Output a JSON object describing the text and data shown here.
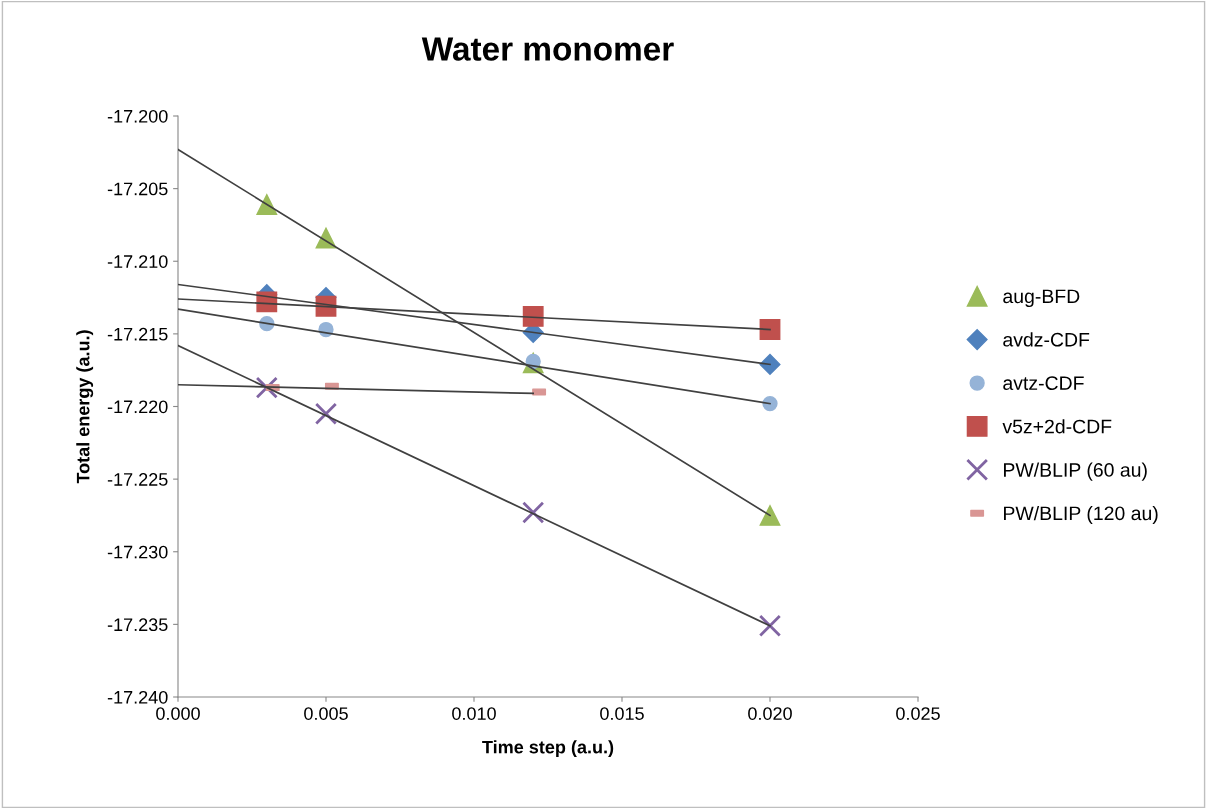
{
  "chart_data": {
    "type": "scatter",
    "title": "Water monomer",
    "xlabel": "Time step (a.u.)",
    "ylabel": "Total energy (a.u.)",
    "xlim": [
      0,
      0.025
    ],
    "xticks": [
      {
        "value": 0,
        "label": "0.000"
      },
      {
        "value": 0.005,
        "label": "0.005"
      },
      {
        "value": 0.01,
        "label": "0.010"
      },
      {
        "value": 0.015,
        "label": "0.015"
      },
      {
        "value": 0.02,
        "label": "0.020"
      },
      {
        "value": 0.025,
        "label": "0.025"
      }
    ],
    "ylim": [
      -17.24,
      -17.2
    ],
    "yticks": [
      {
        "value": -17.24,
        "label": "-17.240"
      },
      {
        "value": -17.235,
        "label": "-17.235"
      },
      {
        "value": -17.23,
        "label": "-17.230"
      },
      {
        "value": -17.225,
        "label": "-17.225"
      },
      {
        "value": -17.22,
        "label": "-17.220"
      },
      {
        "value": -17.215,
        "label": "-17.215"
      },
      {
        "value": -17.21,
        "label": "-17.210"
      },
      {
        "value": -17.205,
        "label": "-17.205"
      },
      {
        "value": -17.2,
        "label": "-17.200"
      }
    ],
    "grid": false,
    "legend": "right",
    "series": [
      {
        "type": "line",
        "color": "#404040",
        "marker": "none",
        "x": [
          0,
          0.02
        ],
        "values": [
          -17.2023,
          -17.2275
        ]
      },
      {
        "type": "line",
        "color": "#404040",
        "marker": "none",
        "x": [
          0,
          0.02
        ],
        "values": [
          -17.2116,
          -17.2171
        ]
      },
      {
        "type": "line",
        "color": "#404040",
        "marker": "none",
        "x": [
          0,
          0.02
        ],
        "values": [
          -17.2133,
          -17.2198
        ]
      },
      {
        "type": "line",
        "color": "#404040",
        "marker": "none",
        "x": [
          0,
          0.02
        ],
        "values": [
          -17.2126,
          -17.2147
        ]
      },
      {
        "type": "line",
        "color": "#404040",
        "marker": "none",
        "x": [
          0,
          0.02
        ],
        "values": [
          -17.2158,
          -17.2351
        ]
      },
      {
        "type": "line",
        "color": "#404040",
        "marker": "none",
        "x": [
          0,
          0.012
        ],
        "values": [
          -17.2185,
          -17.2191
        ]
      },
      {
        "name": "aug-BFD",
        "color": "#9bbb59",
        "marker": "triangle",
        "x": [
          0.003,
          0.005,
          0.012,
          0.02
        ],
        "values": [
          -17.2061,
          -17.2084,
          -17.217,
          -17.2275
        ]
      },
      {
        "name": "avdz-CDF",
        "color": "#4f81bd",
        "marker": "diamond",
        "x": [
          0.003,
          0.005,
          0.012,
          0.02
        ],
        "values": [
          -17.2123,
          -17.2125,
          -17.2149,
          -17.2171
        ]
      },
      {
        "name": "avtz-CDF",
        "color": "#95b3d7",
        "marker": "circle",
        "x": [
          0.003,
          0.005,
          0.012,
          0.02
        ],
        "values": [
          -17.2143,
          -17.2147,
          -17.2169,
          -17.2198
        ]
      },
      {
        "name": "v5z+2d-CDF",
        "color": "#c0504d",
        "marker": "square",
        "x": [
          0.003,
          0.005,
          0.012,
          0.02
        ],
        "values": [
          -17.2128,
          -17.2131,
          -17.2138,
          -17.2147
        ]
      },
      {
        "name": "PW/BLIP (60 au)",
        "color": "#8064a2",
        "marker": "cross",
        "x": [
          0.003,
          0.005,
          0.012,
          0.02
        ],
        "values": [
          -17.2187,
          -17.2205,
          -17.2273,
          -17.2351
        ]
      },
      {
        "name": "PW/BLIP (120 au)",
        "color": "#d99694",
        "marker": "square",
        "x": [
          0.0032,
          0.0052,
          0.0122
        ],
        "values": [
          -17.2187,
          -17.2186,
          -17.219
        ]
      }
    ]
  }
}
